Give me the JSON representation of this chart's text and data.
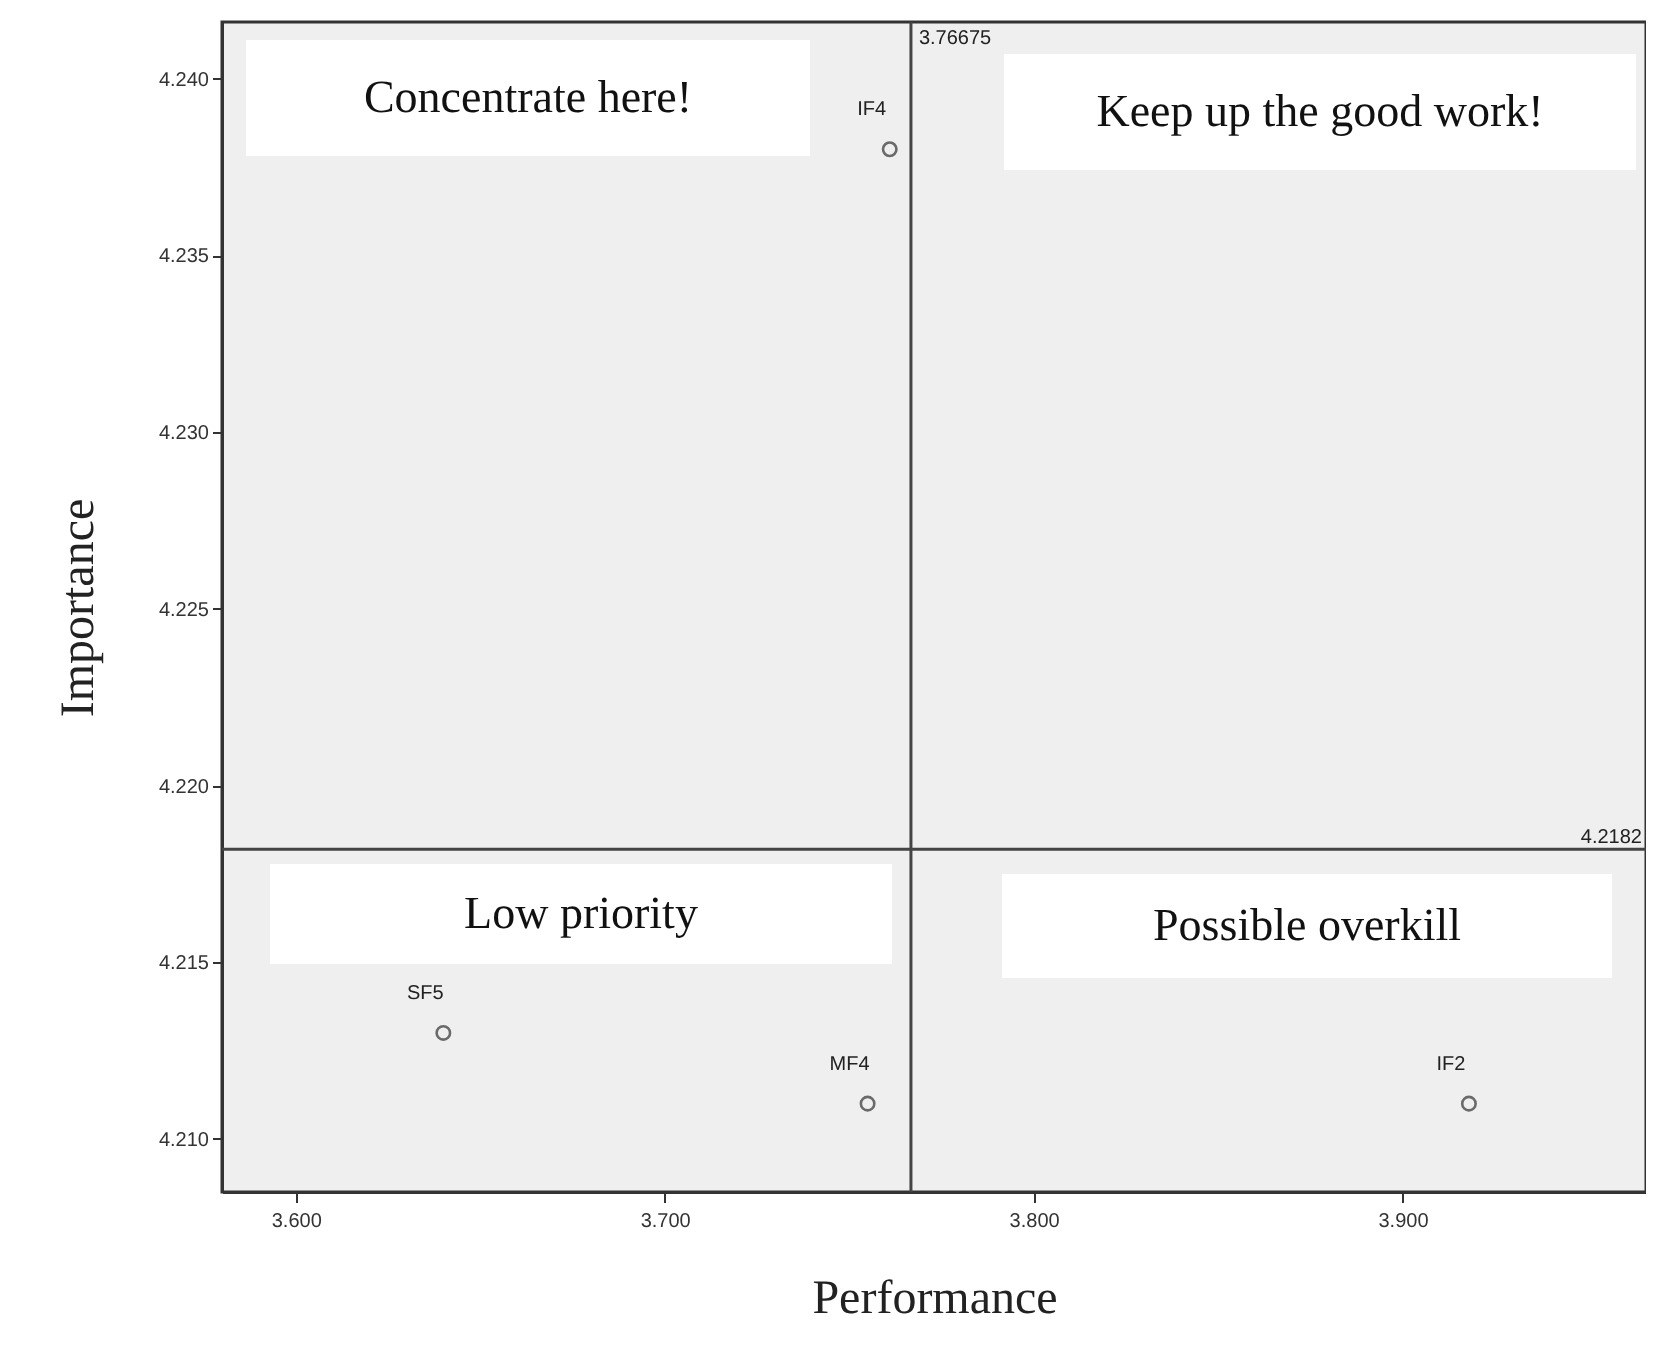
{
  "chart_data": {
    "type": "scatter",
    "xlabel": "Performance",
    "ylabel": "Importance",
    "x": [
      3.761,
      3.64,
      3.755,
      3.918
    ],
    "values": [
      4.238,
      4.213,
      4.211,
      4.211
    ],
    "color": "#333333",
    "marker": "circle",
    "xlim": [
      3.58,
      3.966
    ],
    "ylim": [
      4.2085,
      4.2416
    ],
    "xticks": [
      {
        "value": 3.6,
        "label": "3.600"
      },
      {
        "value": 3.7,
        "label": "3.700"
      },
      {
        "value": 3.8,
        "label": "3.800"
      },
      {
        "value": 3.9,
        "label": "3.900"
      }
    ],
    "yticks": [
      {
        "value": 4.21,
        "label": "4.210"
      },
      {
        "value": 4.215,
        "label": "4.215"
      },
      {
        "value": 4.22,
        "label": "4.220"
      },
      {
        "value": 4.225,
        "label": "4.225"
      },
      {
        "value": 4.23,
        "label": "4.230"
      },
      {
        "value": 4.235,
        "label": "4.235"
      },
      {
        "value": 4.24,
        "label": "4.240"
      }
    ],
    "grid": false,
    "ref_lines": [
      {
        "axis": "x",
        "value": 3.76675,
        "label": "3.76675"
      },
      {
        "axis": "y",
        "value": 4.2182,
        "label": "4.2182"
      }
    ],
    "annotations": [
      "Concentrate here!",
      "Keep up the good work!",
      "Low priority",
      "Possible overkill",
      {
        "text": "IF4",
        "x": 3.761,
        "y": 4.238
      },
      {
        "text": "SF5",
        "x": 3.64,
        "y": 4.213
      },
      {
        "text": "MF4",
        "x": 3.755,
        "y": 4.211
      },
      {
        "text": "IF2",
        "x": 3.918,
        "y": 4.211
      }
    ]
  }
}
